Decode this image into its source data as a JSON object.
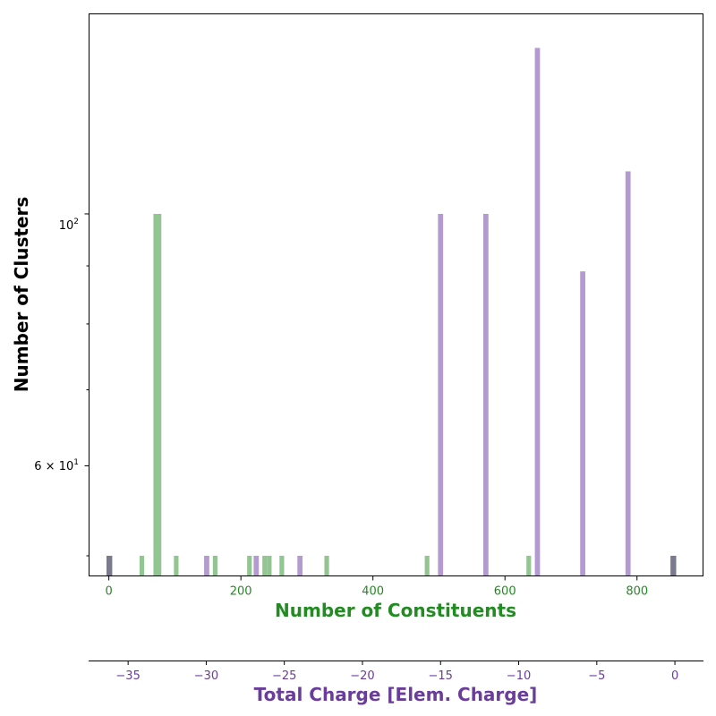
{
  "chart_data": {
    "type": "bar",
    "title": "",
    "ylabel": "Number of Clusters",
    "yscale": "log",
    "ylim": [
      48,
      150
    ],
    "y_tick_labels": {
      "main": [
        "6 × 10",
        "1",
        "10",
        "2"
      ]
    },
    "y_ticks": [
      50,
      60,
      70,
      80,
      90,
      100
    ],
    "x_primary": {
      "label": "Number of Constituents",
      "color": "#228b22",
      "ticks": [
        0,
        200,
        400,
        600,
        800
      ],
      "xlim": [
        -30,
        900
      ]
    },
    "x_secondary": {
      "label": "Total Charge [Elem. Charge]",
      "color": "#6a3d9a",
      "ticks": [
        -35,
        -30,
        -25,
        -20,
        -15,
        -10,
        -5,
        0
      ],
      "tick_labels": [
        "−35",
        "−30",
        "−25",
        "−20",
        "−15",
        "−10",
        "−5",
        "0"
      ],
      "xlim": [
        -37.5,
        1.8
      ]
    },
    "series": [
      {
        "name": "Number of Constituents",
        "color": "#93c593",
        "axis": "x_primary",
        "bin_width": 7,
        "x": [
          50,
          71,
          76,
          102,
          161,
          213,
          236,
          243,
          262,
          330,
          482,
          636
        ],
        "values": [
          50,
          100,
          100,
          50,
          50,
          50,
          50,
          50,
          50,
          50,
          50,
          50
        ]
      },
      {
        "name": "Total Charge",
        "color": "#b49bcf",
        "axis": "x_secondary",
        "bin_width": 0.33,
        "x": [
          -36.2,
          -29.97,
          -26.8,
          -24.0,
          -15.0,
          -12.1,
          -8.8,
          -5.9,
          -3.0,
          -0.1
        ],
        "values": [
          50,
          50,
          50,
          50,
          100,
          100,
          140,
          89,
          109,
          50
        ]
      }
    ],
    "overlap_color": "#7a7a8f",
    "grid": false,
    "legend": "none"
  },
  "axes": {
    "y_tick_main_a": "6",
    "y_tick_main_b": "10",
    "y_tick_main_exp1": "1",
    "y_tick_100_base": "10",
    "y_tick_100_exp": "2"
  }
}
